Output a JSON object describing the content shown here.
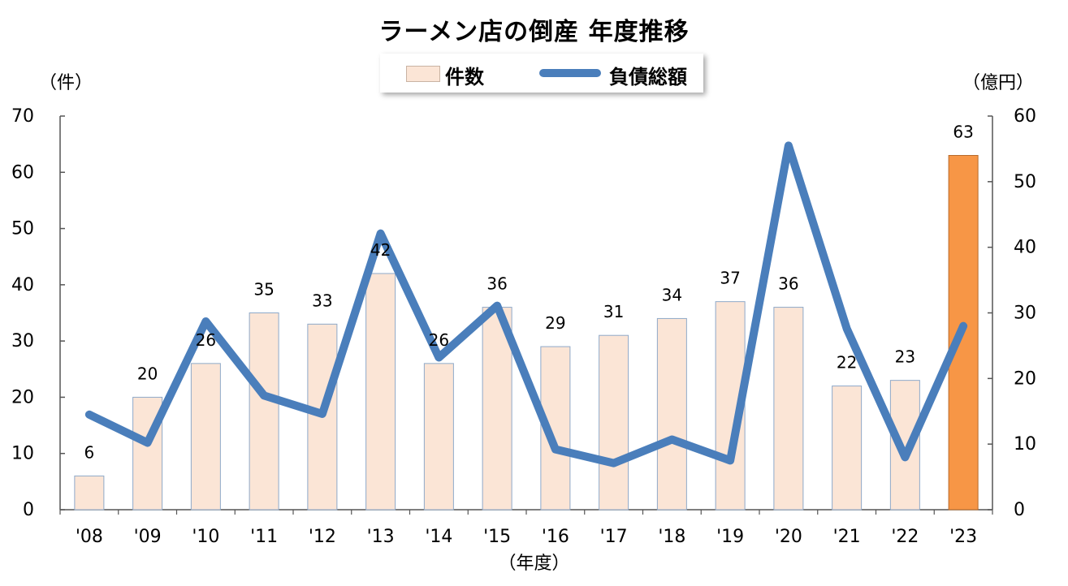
{
  "title": "ラーメン店の倒産 年度推移",
  "left_unit": "（件）",
  "right_unit": "（億円）",
  "x_unit": "（年度）",
  "legend": {
    "bar_label": "件数",
    "line_label": "負債総額"
  },
  "colors": {
    "bar": "#fbe5d6",
    "bar_border": "#8ea9c9",
    "highlight_bar": "#f79646",
    "line": "#4a7ebb"
  },
  "chart_data": {
    "type": "bar",
    "categories": [
      "'08",
      "'09",
      "'10",
      "'11",
      "'12",
      "'13",
      "'14",
      "'15",
      "'16",
      "'17",
      "'18",
      "'19",
      "'20",
      "'21",
      "'22",
      "'23"
    ],
    "series": [
      {
        "name": "件数",
        "type": "bar",
        "axis": "left",
        "values": [
          6,
          20,
          26,
          35,
          33,
          42,
          26,
          36,
          29,
          31,
          34,
          37,
          36,
          22,
          23,
          63
        ],
        "highlight_index": 15
      },
      {
        "name": "負債総額",
        "type": "line",
        "axis": "right",
        "values": [
          14.5,
          10.2,
          28.7,
          17.4,
          14.6,
          42.1,
          23.2,
          31.1,
          9.2,
          7.1,
          10.7,
          7.5,
          55.5,
          27.6,
          8.0,
          28.0
        ]
      }
    ],
    "ylim_left": [
      0,
      70
    ],
    "yticks_left": [
      0,
      10,
      20,
      30,
      40,
      50,
      60,
      70
    ],
    "ylim_right": [
      0,
      60
    ],
    "yticks_right": [
      0,
      10,
      20,
      30,
      40,
      50,
      60
    ],
    "grid": false,
    "legend_position": "top-center"
  }
}
